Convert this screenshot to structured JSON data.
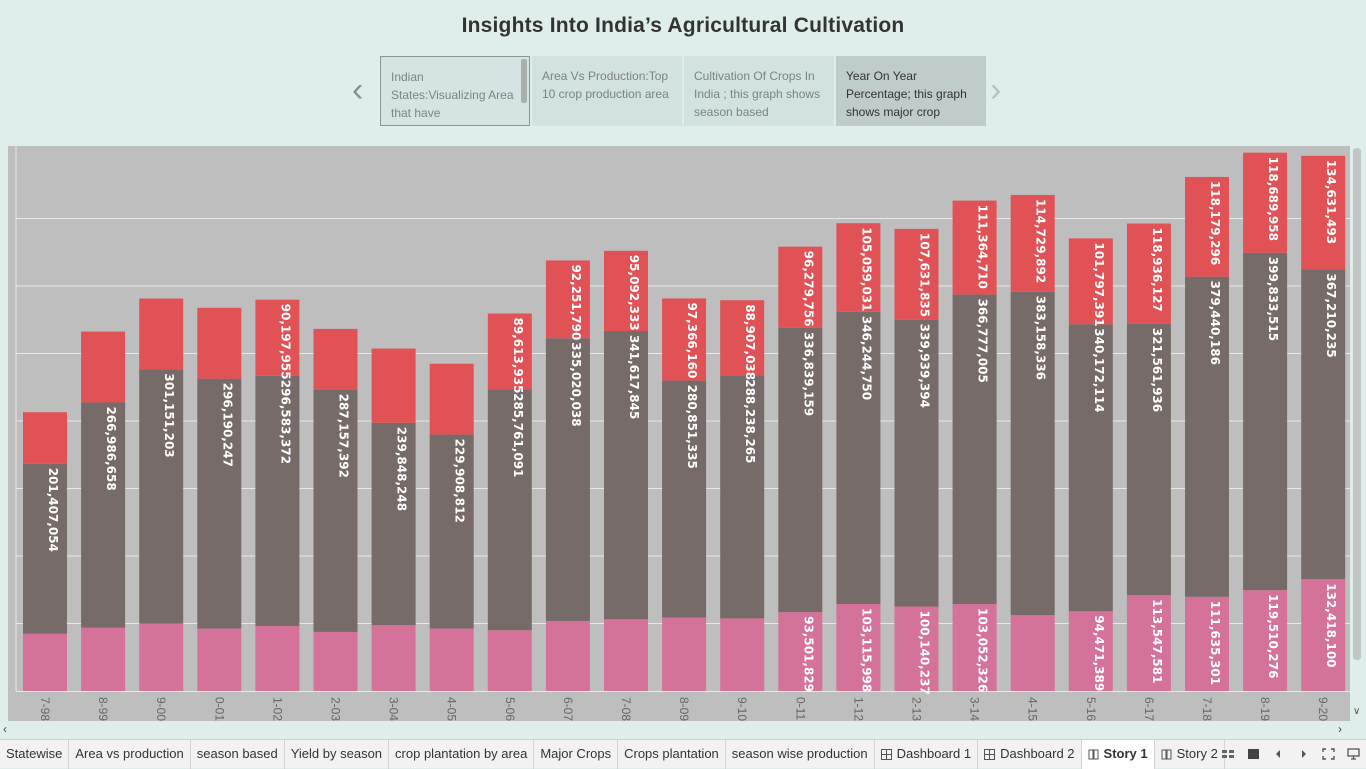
{
  "story": {
    "title": "Insights Into India’s Agricultural Cultivation",
    "points": [
      {
        "text": "Indian States:Visualizing Area that have"
      },
      {
        "text": "Area Vs Production:Top 10 crop production area"
      },
      {
        "text": "Cultivation  Of Crops In India ; this graph shows season based"
      },
      {
        "text": "Year  On Year Percentage; this graph shows major crop"
      }
    ],
    "prev_icon": "chevron-left",
    "next_icon": "chevron-right"
  },
  "tabs": [
    {
      "label": "Statewise",
      "icon": ""
    },
    {
      "label": "Area vs production",
      "icon": ""
    },
    {
      "label": "season based",
      "icon": ""
    },
    {
      "label": "Yield by season",
      "icon": ""
    },
    {
      "label": "crop plantation by area",
      "icon": ""
    },
    {
      "label": "Major Crops",
      "icon": ""
    },
    {
      "label": "Crops plantation",
      "icon": ""
    },
    {
      "label": "season wise production",
      "icon": ""
    },
    {
      "label": "Dashboard 1",
      "icon": "dashboard-icon"
    },
    {
      "label": "Dashboard 2",
      "icon": "dashboard-icon"
    },
    {
      "label": "Story 1",
      "icon": "story-icon",
      "active": true
    },
    {
      "label": "Story 2",
      "icon": "story-icon"
    }
  ],
  "colors": {
    "bottom": "#d4729a",
    "middle": "#766b69",
    "top": "#e05256",
    "chart_bg": "#bebebe",
    "label": "#ffffff"
  },
  "chart_data": {
    "type": "bar",
    "stacked": true,
    "grid": true,
    "categories": [
      "7-98",
      "8-99",
      "9-00",
      "0-01",
      "1-02",
      "2-03",
      "3-04",
      "4-05",
      "5-06",
      "6-07",
      "7-08",
      "8-09",
      "9-10",
      "0-11",
      "1-12",
      "2-13",
      "3-14",
      "4-15",
      "5-16",
      "6-17",
      "7-18",
      "8-19",
      "9-20"
    ],
    "ylim": [
      0,
      640000000
    ],
    "series": [
      {
        "key": "bottom",
        "values": [
          68000000,
          75000000,
          80000000,
          74000000,
          77000000,
          70000000,
          78000000,
          74000000,
          72000000,
          83000000,
          85000000,
          87000000,
          86000000,
          93501829,
          103115998,
          100140237,
          103052326,
          90000000,
          94471389,
          113547581,
          111635301,
          119510276,
          132418100
        ],
        "labels": [
          "",
          "",
          "",
          "",
          "",
          "",
          "",
          "",
          "",
          "",
          "",
          "",
          "",
          "93,501,829",
          "103,115,998",
          "100,140,237",
          "103,052,326",
          "",
          "94,471,389",
          "113,547,581",
          "111,635,301",
          "119,510,276",
          "132,418,100"
        ]
      },
      {
        "key": "middle",
        "values": [
          201407054,
          266986658,
          301151203,
          296190247,
          296583372,
          287157392,
          239848248,
          229908812,
          285761091,
          335020038,
          341617845,
          280851335,
          288238265,
          336839159,
          346244750,
          339939394,
          366777005,
          383158336,
          340172114,
          321561936,
          379440186,
          399833515,
          367210235
        ],
        "labels": [
          "201,407,054",
          "266,986,658",
          "301,151,203",
          "296,190,247",
          "296,583,372",
          "287,157,392",
          "239,848,248",
          "229,908,812",
          "285,761,091",
          "335,020,038",
          "341,617,845",
          "280,851,335",
          "288,238,265",
          "336,839,159",
          "346,244,750",
          "339,939,394",
          "366,777,005",
          "383,158,336",
          "340,172,114",
          "321,561,936",
          "379,440,186",
          "399,833,515",
          "367,210,235"
        ]
      },
      {
        "key": "top",
        "values": [
          61000000,
          84000000,
          84000000,
          84000000,
          90197955,
          72000000,
          88000000,
          84000000,
          89613935,
          92251790,
          95092333,
          97366160,
          88907038,
          96279756,
          105059031,
          107631835,
          111364710,
          114729892,
          101797391,
          118936127,
          118179296,
          118689958,
          134631493
        ],
        "labels": [
          "",
          "",
          "",
          "",
          "90,197,955",
          "",
          "",
          "",
          "89,613,935",
          "92,251,790",
          "95,092,333",
          "97,366,160",
          "88,907,038",
          "96,279,756",
          "105,059,031",
          "107,631,835",
          "111,364,710",
          "114,729,892",
          "101,797,391",
          "118,936,127",
          "118,179,296",
          "118,689,958",
          "134,631,493"
        ]
      }
    ]
  }
}
